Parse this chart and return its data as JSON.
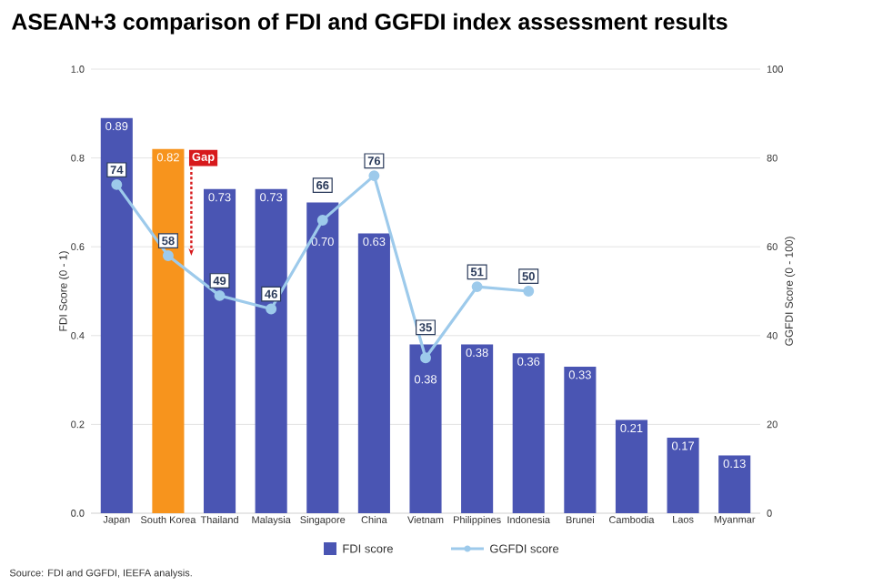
{
  "chart_data": {
    "type": "bar",
    "title": "ASEAN+3 comparison of FDI and GGFDI index assessment results",
    "categories": [
      "Japan",
      "South Korea",
      "Thailand",
      "Malaysia",
      "Singapore",
      "China",
      "Vietnam",
      "Philippines",
      "Indonesia",
      "Brunei",
      "Cambodia",
      "Laos",
      "Myanmar"
    ],
    "series": [
      {
        "name": "FDI score",
        "color": "#4a55b3",
        "colors": [
          "#4a55b3",
          "#f7941d",
          "#4a55b3",
          "#4a55b3",
          "#4a55b3",
          "#4a55b3",
          "#4a55b3",
          "#4a55b3",
          "#4a55b3",
          "#4a55b3",
          "#4a55b3",
          "#4a55b3",
          "#4a55b3"
        ],
        "values": [
          0.89,
          0.82,
          0.73,
          0.73,
          0.7,
          0.63,
          0.38,
          0.38,
          0.36,
          0.33,
          0.21,
          0.17,
          0.13
        ],
        "value_labels": [
          "0.89",
          "0.82",
          "0.73",
          "0.73",
          "0.70",
          "0.63",
          "0.38",
          "0.38",
          "0.36",
          "0.33",
          "0.21",
          "0.17",
          "0.13"
        ]
      },
      {
        "name": "GGFDI score",
        "type": "line",
        "axis": "y2",
        "color": "#9dcaeb",
        "marker": "circle",
        "values": [
          74,
          58,
          49,
          46,
          66,
          76,
          35,
          51,
          50,
          null,
          null,
          null,
          null
        ],
        "value_labels": [
          "74",
          "58",
          "49",
          "46",
          "66",
          "76",
          "35",
          "51",
          "50",
          null,
          null,
          null,
          null
        ]
      }
    ],
    "ylabel": "FDI Score (0 - 1)",
    "y2label": "GGFDI Score (0 - 100)",
    "ylim": [
      0,
      1
    ],
    "yticks": [
      {
        "value": 0,
        "label": "0.0"
      },
      {
        "value": 0.2,
        "label": "0.2"
      },
      {
        "value": 0.4,
        "label": "0.4"
      },
      {
        "value": 0.6,
        "label": "0.6"
      },
      {
        "value": 0.8,
        "label": "0.8"
      },
      {
        "value": 1,
        "label": "1.0"
      }
    ],
    "y2lim": [
      0,
      100
    ],
    "y2ticks": [
      0,
      20,
      40,
      60,
      80,
      100
    ],
    "grid": "y",
    "legend": "bottom",
    "annotations": [
      {
        "text": "Gap",
        "x": "South Korea",
        "y": 0.8
      },
      "Source: FDI and GGFDI, IEEFA analysis."
    ]
  }
}
